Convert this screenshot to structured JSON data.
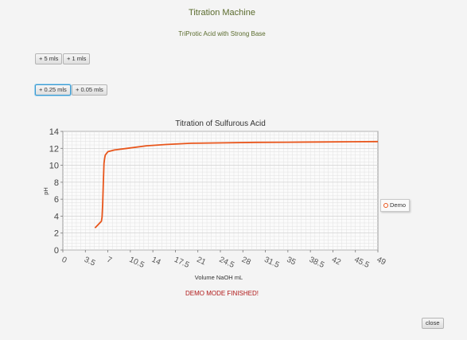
{
  "app": {
    "title": "Titration Machine",
    "subtitle": "TriProtic Acid with Strong Base"
  },
  "buttons": {
    "add5": "+ 5 mls",
    "add1": "+ 1 mls",
    "add025": "+ 0.25 mls",
    "add005": "+ 0.05 mls",
    "close": "close"
  },
  "status": "DEMO MODE FINISHED!",
  "colors": {
    "series": "#e8561c",
    "title": "#5a6b2d",
    "status": "#b01818"
  },
  "chart_data": {
    "type": "line",
    "title": "Titration of Sulfurous Acid",
    "xlabel": "Volume NaOH mL",
    "ylabel": "pH",
    "xlim": [
      0,
      49
    ],
    "ylim": [
      0,
      14
    ],
    "xticks": [
      "0",
      "3.5",
      "7",
      "10.5",
      "14",
      "17.5",
      "21",
      "24.5",
      "28",
      "31.5",
      "35",
      "38.5",
      "42",
      "45.5",
      "49"
    ],
    "yticks": [
      "0",
      "2",
      "4",
      "6",
      "8",
      "10",
      "12",
      "14"
    ],
    "grid": true,
    "legend": "right",
    "series": [
      {
        "name": "Demo",
        "x": [
          5,
          5.5,
          6,
          6.1,
          6.2,
          6.3,
          6.4,
          6.5,
          6.6,
          7,
          8,
          10,
          13,
          16,
          20,
          25,
          30,
          35,
          40,
          45,
          49
        ],
        "y": [
          2.6,
          3.0,
          3.4,
          3.9,
          5.5,
          8.0,
          10.2,
          10.8,
          11.2,
          11.6,
          11.8,
          12.0,
          12.3,
          12.45,
          12.6,
          12.65,
          12.7,
          12.72,
          12.75,
          12.78,
          12.8
        ]
      }
    ]
  }
}
